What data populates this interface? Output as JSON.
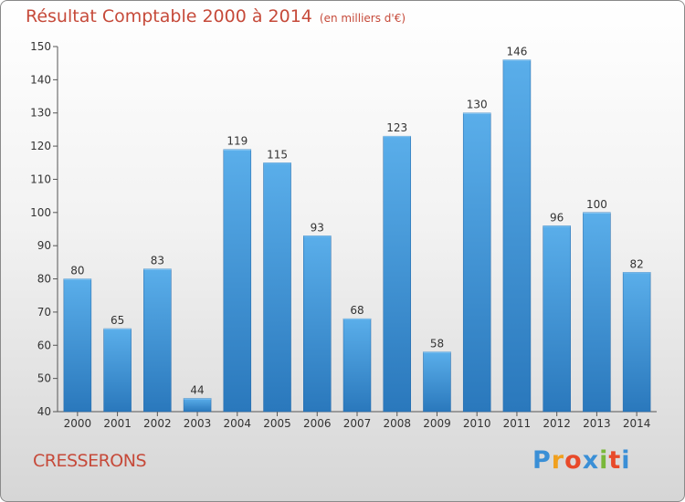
{
  "header": {
    "title": "Résultat Comptable 2000 à 2014",
    "unit": "(en milliers d'€)"
  },
  "footer": {
    "commune": "CRESSERONS",
    "brand_letters": [
      "P",
      "r",
      "o",
      "x",
      "i",
      "t",
      "i"
    ],
    "brand_colors": [
      "#3a8fd6",
      "#f0a01e",
      "#e84a2a",
      "#3a8fd6",
      "#7ab83a",
      "#e84a2a",
      "#3a8fd6"
    ]
  },
  "chart_data": {
    "type": "bar",
    "title": "Résultat Comptable 2000 à 2014",
    "subtitle": "(en milliers d'€)",
    "xlabel": "",
    "ylabel": "",
    "categories": [
      "2000",
      "2001",
      "2002",
      "2003",
      "2004",
      "2005",
      "2006",
      "2007",
      "2008",
      "2009",
      "2010",
      "2011",
      "2012",
      "2013",
      "2014"
    ],
    "values": [
      80,
      65,
      83,
      44,
      119,
      115,
      93,
      68,
      123,
      58,
      130,
      146,
      96,
      100,
      82
    ],
    "ylim": [
      40,
      150
    ],
    "yticks": [
      40,
      50,
      60,
      70,
      80,
      90,
      100,
      110,
      120,
      130,
      140,
      150
    ],
    "grid": false,
    "bar_color_top": "#5aaeea",
    "bar_color_bottom": "#2a78bc",
    "text_color": "#c64a3a"
  }
}
